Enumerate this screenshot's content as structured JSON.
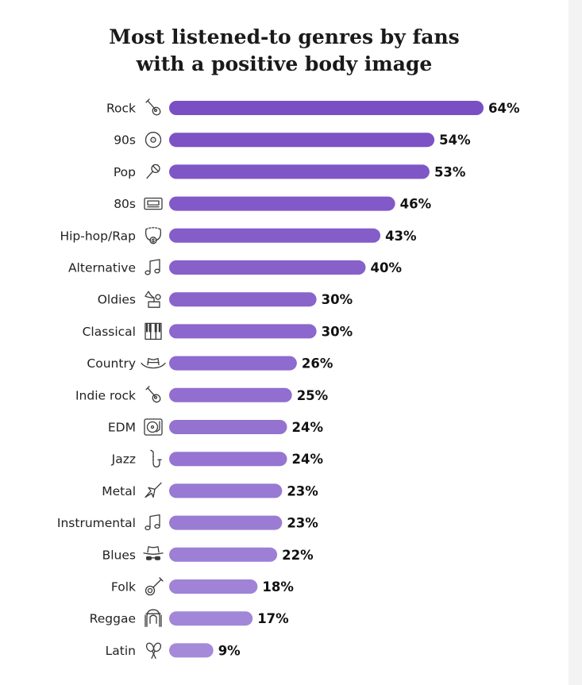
{
  "chart_data": {
    "type": "bar",
    "orientation": "horizontal",
    "title_lines": [
      "Most listened-to genres by fans",
      "with a positive body image"
    ],
    "categories": [
      "Rock",
      "90s",
      "Pop",
      "80s",
      "Hip-hop/Rap",
      "Alternative",
      "Oldies",
      "Classical",
      "Country",
      "Indie rock",
      "EDM",
      "Jazz",
      "Metal",
      "Instrumental",
      "Blues",
      "Folk",
      "Reggae",
      "Latin"
    ],
    "values": [
      64,
      54,
      53,
      46,
      43,
      40,
      30,
      30,
      26,
      25,
      24,
      24,
      23,
      23,
      22,
      18,
      17,
      9
    ],
    "value_labels": [
      "64%",
      "54%",
      "53%",
      "46%",
      "43%",
      "40%",
      "30%",
      "30%",
      "26%",
      "25%",
      "24%",
      "24%",
      "23%",
      "23%",
      "22%",
      "18%",
      "17%",
      "9%"
    ],
    "unit": "%",
    "icons": [
      "guitar-icon",
      "cd-icon",
      "microphone-icon",
      "cassette-icon",
      "chain-necklace-icon",
      "music-note-icon",
      "gramophone-icon",
      "piano-keys-icon",
      "cowboy-hat-icon",
      "guitar-icon",
      "turntable-icon",
      "saxophone-icon",
      "electric-guitar-icon",
      "music-note-icon",
      "fedora-sunglasses-icon",
      "banjo-icon",
      "dreadlocks-icon",
      "maracas-icon"
    ],
    "bar_color_top": "#7a4fc4",
    "bar_color_bottom": "#a58ad9",
    "grid": false,
    "legend": "none"
  }
}
